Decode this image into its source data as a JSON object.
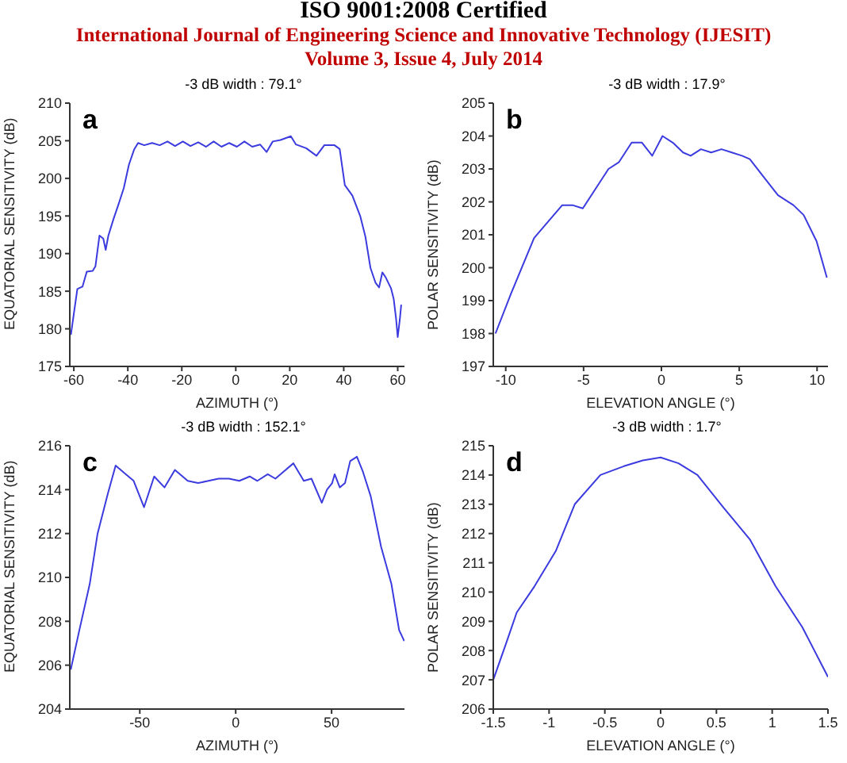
{
  "chart_data": [
    {
      "type": "line",
      "title": "-3 dB width : 79.1°",
      "xlabel": "AZIMUTH (°)",
      "ylabel": "EQUATORIAL SENSITIVITY (dB)",
      "annotations": [
        "a",
        "ISO 9001:2008 Certified",
        "International Journal of Engineering Science and Innovative Technology (IJESIT)",
        "Volume 3, Issue 4, July 2014"
      ],
      "xlim": [
        -61.5,
        62.5
      ],
      "ylim": [
        175,
        210
      ],
      "xticks": [
        -60,
        -40,
        -20,
        0,
        20,
        40,
        60
      ],
      "yticks": [
        175,
        180,
        185,
        190,
        195,
        200,
        205,
        210
      ],
      "grid": false,
      "marker": "none",
      "line_style": "solid",
      "legend": false,
      "series": [
        {
          "color": "#3b3bdf",
          "x": [
            -61.1,
            -60,
            -58.7,
            -56.8,
            -55.2,
            -53,
            -52,
            -50.5,
            -49.1,
            -48.2,
            -47.2,
            -45.3,
            -43.4,
            -41.5,
            -39.6,
            -37.7,
            -36.2,
            -33.9,
            -31,
            -28.2,
            -25.3,
            -22.5,
            -19.6,
            -16.8,
            -13.9,
            -11,
            -8.2,
            -5.3,
            -2.5,
            0.4,
            3.2,
            6.1,
            9,
            11.4,
            13.7,
            16.6,
            20.4,
            22.3,
            26.1,
            29.9,
            32.8,
            36.6,
            38.5,
            40.4,
            43.2,
            46.1,
            48,
            49.9,
            51.8,
            53.1,
            54.3,
            55.6,
            57.5,
            58.5,
            59.4,
            60,
            60.8,
            61.3
          ],
          "values": [
            179.2,
            182,
            185.3,
            185.6,
            187.6,
            187.7,
            188.3,
            192.4,
            192,
            190.5,
            192.4,
            194.6,
            196.6,
            198.7,
            201.8,
            203.8,
            204.7,
            204.4,
            204.7,
            204.4,
            204.9,
            204.3,
            204.9,
            204.3,
            204.8,
            204.2,
            204.9,
            204.2,
            204.7,
            204.2,
            204.9,
            204.2,
            204.5,
            203.5,
            204.9,
            205.1,
            205.6,
            204.5,
            204,
            203,
            204.4,
            204.4,
            203.9,
            199.1,
            197.7,
            195,
            192.3,
            188.1,
            186.1,
            185.5,
            187.5,
            186.8,
            185.4,
            184,
            181.3,
            178.9,
            181.3,
            183.2
          ]
        }
      ]
    },
    {
      "type": "line",
      "title": "-3 dB width : 17.9°",
      "xlabel": "ELEVATION ANGLE (°)",
      "ylabel": "POLAR SENSITIVITY (dB)",
      "annotations": [
        "b"
      ],
      "xlim": [
        -10.8,
        10.7
      ],
      "ylim": [
        197,
        205
      ],
      "xticks": [
        -10,
        -5,
        0,
        5,
        10
      ],
      "yticks": [
        197,
        198,
        199,
        200,
        201,
        202,
        203,
        204,
        205
      ],
      "grid": false,
      "marker": "none",
      "line_style": "solid",
      "legend": false,
      "series": [
        {
          "color": "#3b3bdf",
          "x": [
            -10.66,
            -9.67,
            -8.18,
            -6.37,
            -5.71,
            -5.05,
            -3.4,
            -2.74,
            -1.91,
            -1.25,
            -0.59,
            0.07,
            0.73,
            1.39,
            1.88,
            2.54,
            3.2,
            3.86,
            4.52,
            5.18,
            5.68,
            6.5,
            7.49,
            8.48,
            9.14,
            9.97,
            10.63
          ],
          "values": [
            198,
            199.2,
            200.9,
            201.9,
            201.9,
            201.8,
            203,
            203.2,
            203.8,
            203.8,
            203.4,
            204,
            203.8,
            203.5,
            203.4,
            203.6,
            203.5,
            203.6,
            203.5,
            203.4,
            203.3,
            202.8,
            202.2,
            201.9,
            201.6,
            200.8,
            199.7
          ]
        }
      ]
    },
    {
      "type": "line",
      "title": "-3 dB width : 152.1°",
      "xlabel": "AZIMUTH (°)",
      "ylabel": "EQUATORIAL SENSITIVITY (dB)",
      "annotations": [
        "c"
      ],
      "xlim": [
        -86.5,
        88
      ],
      "ylim": [
        204,
        216
      ],
      "xticks": [
        -50,
        0,
        50
      ],
      "yticks": [
        204,
        206,
        208,
        210,
        212,
        214,
        216
      ],
      "grid": false,
      "marker": "none",
      "line_style": "solid",
      "legend": false,
      "series": [
        {
          "color": "#3b3bdf",
          "x": [
            -86,
            -81.5,
            -76.1,
            -72,
            -66.7,
            -62.6,
            -58.6,
            -53.2,
            -47.8,
            -42.5,
            -37.1,
            -31.7,
            -25,
            -19.6,
            -14.2,
            -8.9,
            -3.5,
            1.9,
            7.3,
            11.3,
            16.7,
            20.7,
            24.7,
            30.1,
            35.5,
            39.5,
            44.9,
            47.6,
            50.3,
            51.6,
            54.3,
            57,
            59.7,
            63.2,
            66.4,
            70.4,
            75.8,
            81.2,
            85.2,
            87.9
          ],
          "values": [
            205.8,
            207.6,
            209.7,
            212,
            213.8,
            215.1,
            214.8,
            214.4,
            213.2,
            214.6,
            214.1,
            214.9,
            214.4,
            214.3,
            214.4,
            214.5,
            214.5,
            214.4,
            214.6,
            214.4,
            214.7,
            214.5,
            214.8,
            215.2,
            214.4,
            214.5,
            213.4,
            214,
            214.3,
            214.7,
            214.1,
            214.3,
            215.3,
            215.5,
            214.8,
            213.7,
            211.4,
            209.7,
            207.6,
            207.1
          ]
        }
      ]
    },
    {
      "type": "line",
      "title": "-3 dB width : 1.7°",
      "xlabel": "ELEVATION ANGLE (°)",
      "ylabel": "POLAR SENSITIVITY (dB)",
      "annotations": [
        "d"
      ],
      "xlim": [
        -1.5,
        1.5
      ],
      "ylim": [
        206,
        215
      ],
      "xticks": [
        -1.5,
        -1,
        -0.5,
        0,
        0.5,
        1,
        1.5
      ],
      "yticks": [
        206,
        207,
        208,
        209,
        210,
        211,
        212,
        213,
        214,
        215
      ],
      "grid": false,
      "marker": "none",
      "line_style": "solid",
      "legend": false,
      "series": [
        {
          "color": "#3b3bdf",
          "x": [
            -1.5,
            -1.38,
            -1.29,
            -1.13,
            -0.94,
            -0.77,
            -0.54,
            -0.33,
            -0.16,
            0,
            0.16,
            0.33,
            0.56,
            0.8,
            1.03,
            1.27,
            1.5
          ],
          "values": [
            207,
            208.3,
            209.3,
            210.2,
            211.4,
            213,
            214,
            214.3,
            214.5,
            214.6,
            214.4,
            214,
            212.9,
            211.8,
            210.2,
            208.8,
            207.1
          ]
        }
      ]
    }
  ]
}
